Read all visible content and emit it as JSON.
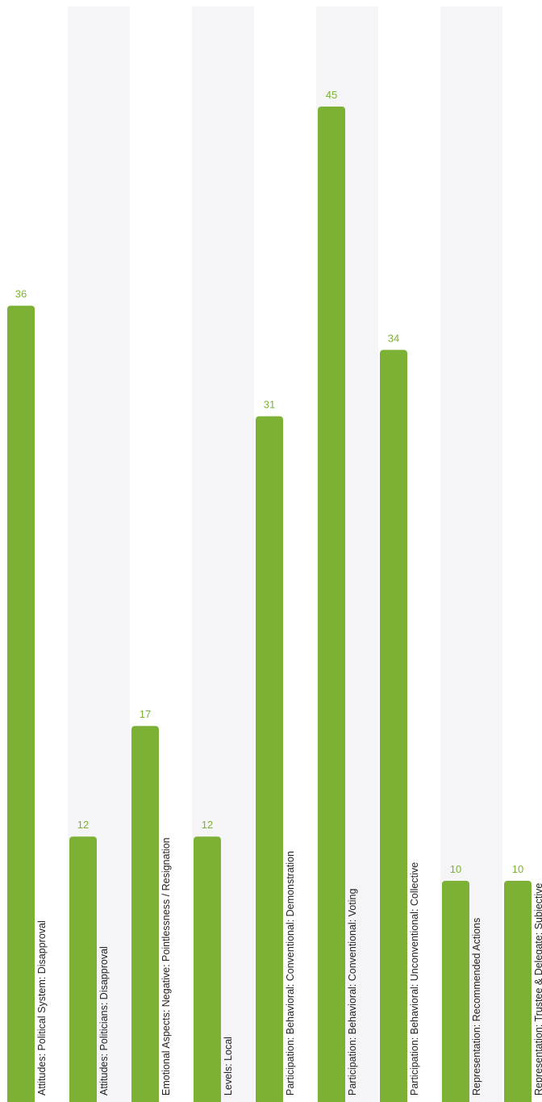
{
  "colors": {
    "bar": "#7cb135",
    "value_label": "#7cb135",
    "band": "#f5f5f7",
    "category_label": "#222222",
    "background": "#ffffff"
  },
  "chart_data": {
    "type": "bar",
    "orientation": "vertical",
    "title": "",
    "xlabel": "",
    "ylabel": "",
    "ylim": [
      0,
      45
    ],
    "grid": false,
    "legend": "none",
    "alternating_bands": true,
    "categories": [
      "Attitudes: Political System: Disapproval",
      "Attitudes: Politicians: Disapproval",
      "Emotional Aspects: Negative: Pointlessness / Resignation",
      "Levels: Local",
      "Participation: Behavioral: Conventional: Demonstration",
      "Participation: Behavioral: Conventional: Voting",
      "Participation: Behavioral: Unconventional: Collective",
      "Representation: Recommended Actions",
      "Representation: Trustee & Delegate: Subjective"
    ],
    "values": [
      36,
      12,
      17,
      12,
      31,
      45,
      34,
      10,
      10
    ]
  }
}
